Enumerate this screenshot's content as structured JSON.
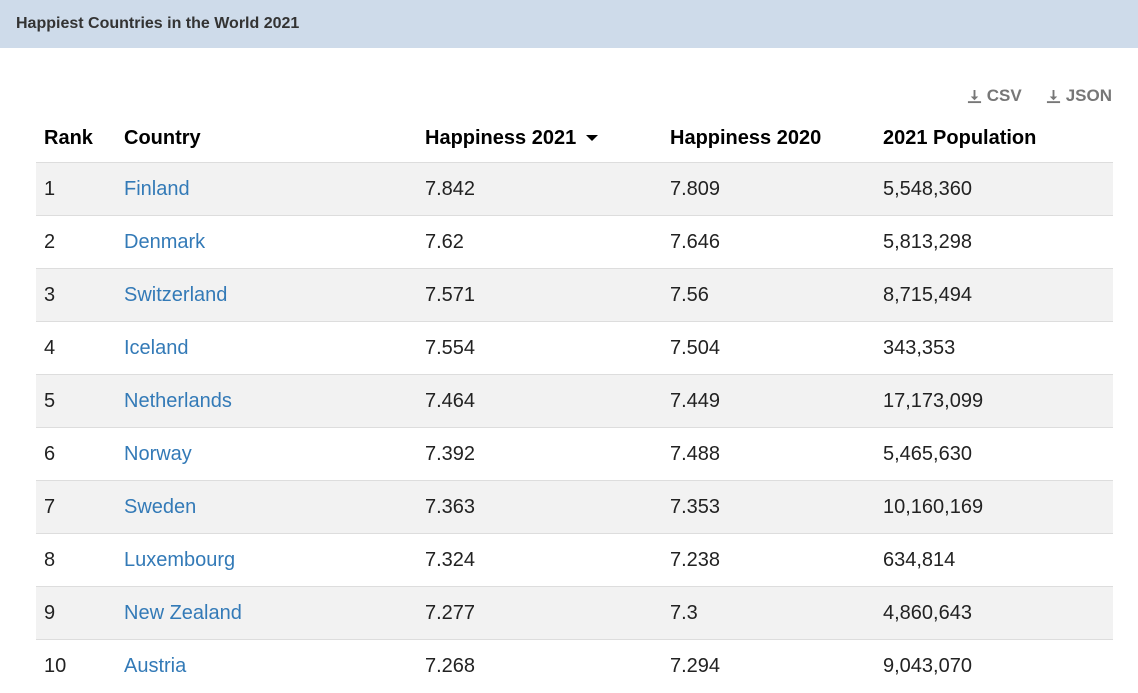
{
  "title": "Happiest Countries in the World 2021",
  "downloads": [
    {
      "label": "CSV",
      "icon": "download-icon"
    },
    {
      "label": "JSON",
      "icon": "download-icon"
    }
  ],
  "columns": [
    "Rank",
    "Country",
    "Happiness 2021",
    "Happiness 2020",
    "2021 Population"
  ],
  "sort": {
    "column": "Happiness 2021",
    "direction": "desc"
  },
  "rows": [
    [
      "1",
      "Finland",
      "7.842",
      "7.809",
      "5,548,360"
    ],
    [
      "2",
      "Denmark",
      "7.62",
      "7.646",
      "5,813,298"
    ],
    [
      "3",
      "Switzerland",
      "7.571",
      "7.56",
      "8,715,494"
    ],
    [
      "4",
      "Iceland",
      "7.554",
      "7.504",
      "343,353"
    ],
    [
      "5",
      "Netherlands",
      "7.464",
      "7.449",
      "17,173,099"
    ],
    [
      "6",
      "Norway",
      "7.392",
      "7.488",
      "5,465,630"
    ],
    [
      "7",
      "Sweden",
      "7.363",
      "7.353",
      "10,160,169"
    ],
    [
      "8",
      "Luxembourg",
      "7.324",
      "7.238",
      "634,814"
    ],
    [
      "9",
      "New Zealand",
      "7.277",
      "7.3",
      "4,860,643"
    ],
    [
      "10",
      "Austria",
      "7.268",
      "7.294",
      "9,043,070"
    ]
  ]
}
